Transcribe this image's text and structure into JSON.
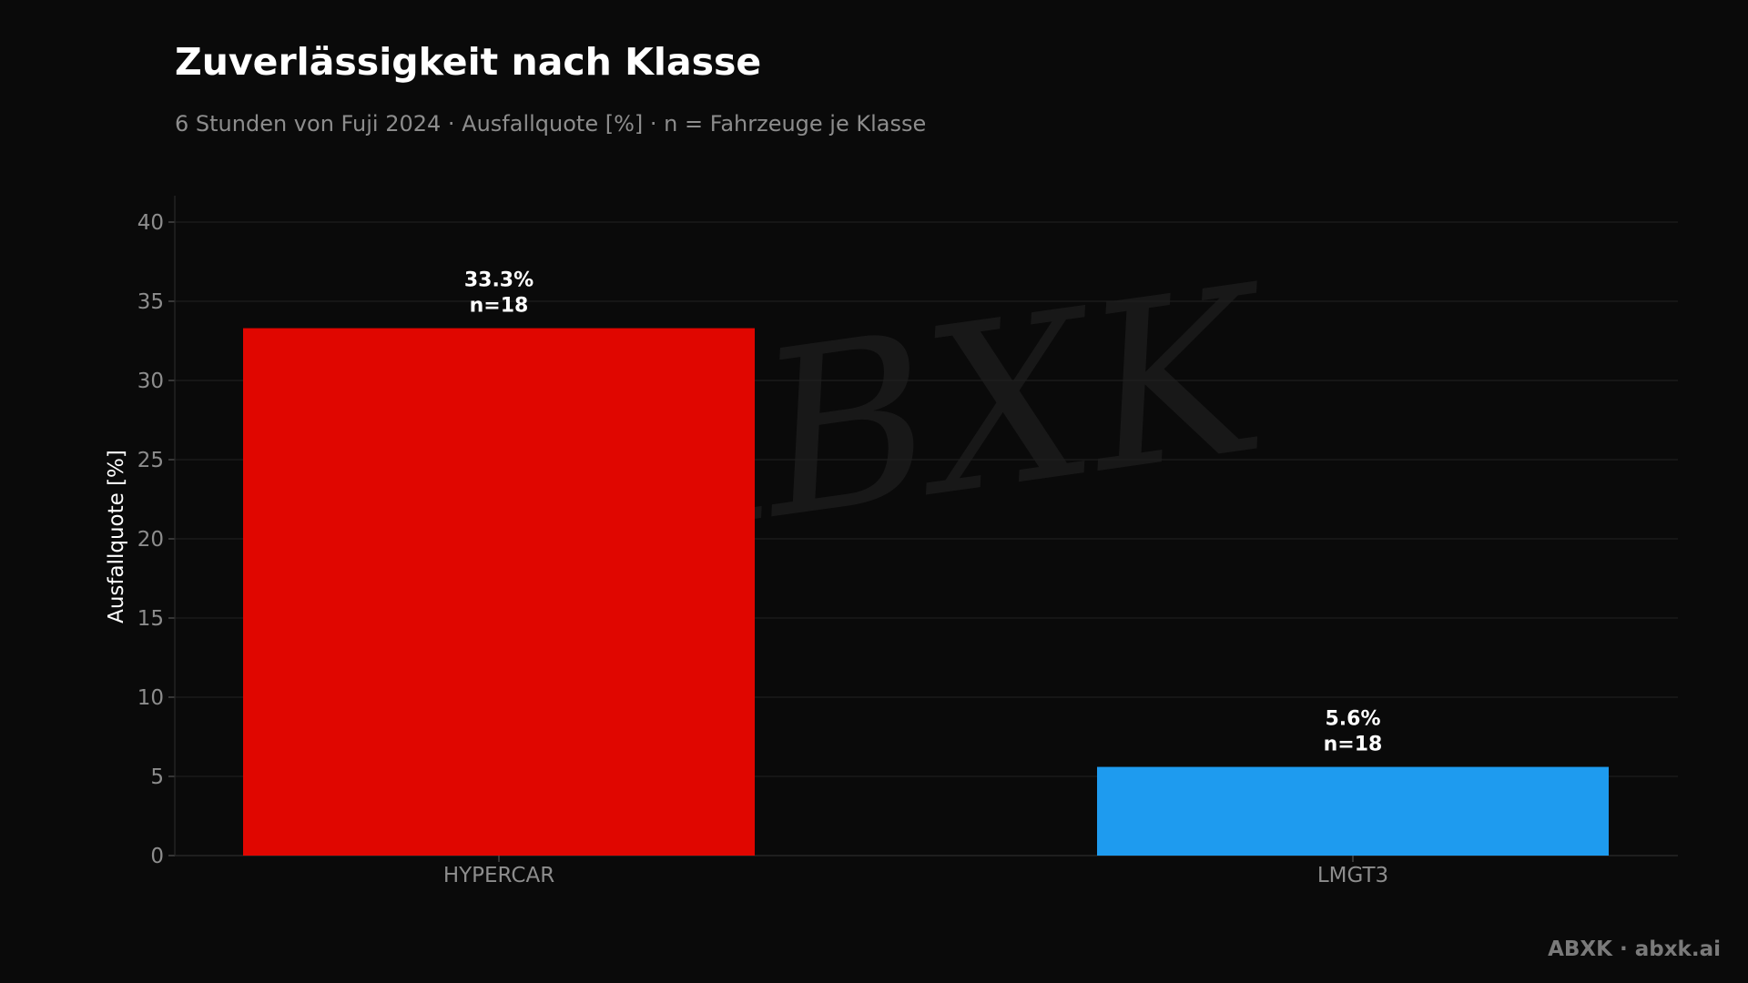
{
  "title": "Zuverlässigkeit nach Klasse",
  "subtitle": "6 Stunden von Fuji 2024 · Ausfallquote [%] · n = Fahrzeuge je Klasse",
  "footer": "ABXK · abxk.ai",
  "watermark": "ABXK",
  "chart_data": {
    "type": "bar",
    "categories": [
      "HYPERCAR",
      "LMGT3"
    ],
    "values": [
      33.3,
      5.6
    ],
    "n": [
      18,
      18
    ],
    "data_labels": [
      "33.3%",
      "5.6%"
    ],
    "count_labels": [
      "n=18",
      "n=18"
    ],
    "colors": [
      "#e00600",
      "#1e9bef"
    ],
    "ylabel": "Ausfallquote [%]",
    "ylim": [
      0,
      40
    ],
    "yticks": [
      0,
      5,
      10,
      15,
      20,
      25,
      30,
      35,
      40
    ],
    "grid": true,
    "legend": "none"
  }
}
